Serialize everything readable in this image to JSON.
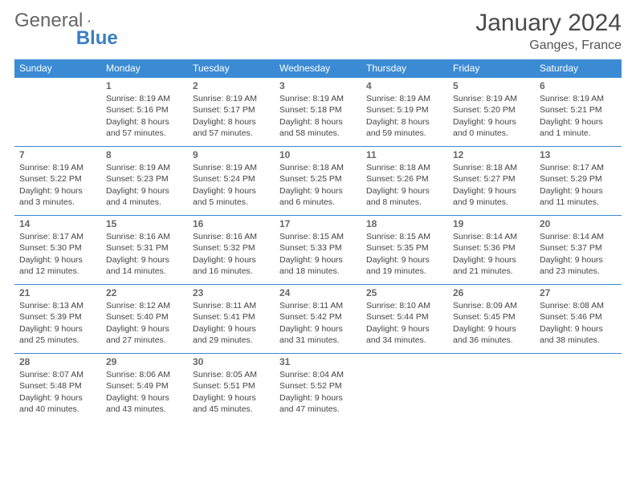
{
  "brand": {
    "part1": "General",
    "part2": "Blue"
  },
  "title": "January 2024",
  "location": "Ganges, France",
  "colors": {
    "header_bg": "#3b8bd4",
    "header_text": "#ffffff",
    "rule": "#3b8bd4",
    "body_text": "#444444",
    "title_text": "#4a4a4a"
  },
  "day_headers": [
    "Sunday",
    "Monday",
    "Tuesday",
    "Wednesday",
    "Thursday",
    "Friday",
    "Saturday"
  ],
  "weeks": [
    [
      null,
      {
        "n": "1",
        "sr": "Sunrise: 8:19 AM",
        "ss": "Sunset: 5:16 PM",
        "d1": "Daylight: 8 hours",
        "d2": "and 57 minutes."
      },
      {
        "n": "2",
        "sr": "Sunrise: 8:19 AM",
        "ss": "Sunset: 5:17 PM",
        "d1": "Daylight: 8 hours",
        "d2": "and 57 minutes."
      },
      {
        "n": "3",
        "sr": "Sunrise: 8:19 AM",
        "ss": "Sunset: 5:18 PM",
        "d1": "Daylight: 8 hours",
        "d2": "and 58 minutes."
      },
      {
        "n": "4",
        "sr": "Sunrise: 8:19 AM",
        "ss": "Sunset: 5:19 PM",
        "d1": "Daylight: 8 hours",
        "d2": "and 59 minutes."
      },
      {
        "n": "5",
        "sr": "Sunrise: 8:19 AM",
        "ss": "Sunset: 5:20 PM",
        "d1": "Daylight: 9 hours",
        "d2": "and 0 minutes."
      },
      {
        "n": "6",
        "sr": "Sunrise: 8:19 AM",
        "ss": "Sunset: 5:21 PM",
        "d1": "Daylight: 9 hours",
        "d2": "and 1 minute."
      }
    ],
    [
      {
        "n": "7",
        "sr": "Sunrise: 8:19 AM",
        "ss": "Sunset: 5:22 PM",
        "d1": "Daylight: 9 hours",
        "d2": "and 3 minutes."
      },
      {
        "n": "8",
        "sr": "Sunrise: 8:19 AM",
        "ss": "Sunset: 5:23 PM",
        "d1": "Daylight: 9 hours",
        "d2": "and 4 minutes."
      },
      {
        "n": "9",
        "sr": "Sunrise: 8:19 AM",
        "ss": "Sunset: 5:24 PM",
        "d1": "Daylight: 9 hours",
        "d2": "and 5 minutes."
      },
      {
        "n": "10",
        "sr": "Sunrise: 8:18 AM",
        "ss": "Sunset: 5:25 PM",
        "d1": "Daylight: 9 hours",
        "d2": "and 6 minutes."
      },
      {
        "n": "11",
        "sr": "Sunrise: 8:18 AM",
        "ss": "Sunset: 5:26 PM",
        "d1": "Daylight: 9 hours",
        "d2": "and 8 minutes."
      },
      {
        "n": "12",
        "sr": "Sunrise: 8:18 AM",
        "ss": "Sunset: 5:27 PM",
        "d1": "Daylight: 9 hours",
        "d2": "and 9 minutes."
      },
      {
        "n": "13",
        "sr": "Sunrise: 8:17 AM",
        "ss": "Sunset: 5:29 PM",
        "d1": "Daylight: 9 hours",
        "d2": "and 11 minutes."
      }
    ],
    [
      {
        "n": "14",
        "sr": "Sunrise: 8:17 AM",
        "ss": "Sunset: 5:30 PM",
        "d1": "Daylight: 9 hours",
        "d2": "and 12 minutes."
      },
      {
        "n": "15",
        "sr": "Sunrise: 8:16 AM",
        "ss": "Sunset: 5:31 PM",
        "d1": "Daylight: 9 hours",
        "d2": "and 14 minutes."
      },
      {
        "n": "16",
        "sr": "Sunrise: 8:16 AM",
        "ss": "Sunset: 5:32 PM",
        "d1": "Daylight: 9 hours",
        "d2": "and 16 minutes."
      },
      {
        "n": "17",
        "sr": "Sunrise: 8:15 AM",
        "ss": "Sunset: 5:33 PM",
        "d1": "Daylight: 9 hours",
        "d2": "and 18 minutes."
      },
      {
        "n": "18",
        "sr": "Sunrise: 8:15 AM",
        "ss": "Sunset: 5:35 PM",
        "d1": "Daylight: 9 hours",
        "d2": "and 19 minutes."
      },
      {
        "n": "19",
        "sr": "Sunrise: 8:14 AM",
        "ss": "Sunset: 5:36 PM",
        "d1": "Daylight: 9 hours",
        "d2": "and 21 minutes."
      },
      {
        "n": "20",
        "sr": "Sunrise: 8:14 AM",
        "ss": "Sunset: 5:37 PM",
        "d1": "Daylight: 9 hours",
        "d2": "and 23 minutes."
      }
    ],
    [
      {
        "n": "21",
        "sr": "Sunrise: 8:13 AM",
        "ss": "Sunset: 5:39 PM",
        "d1": "Daylight: 9 hours",
        "d2": "and 25 minutes."
      },
      {
        "n": "22",
        "sr": "Sunrise: 8:12 AM",
        "ss": "Sunset: 5:40 PM",
        "d1": "Daylight: 9 hours",
        "d2": "and 27 minutes."
      },
      {
        "n": "23",
        "sr": "Sunrise: 8:11 AM",
        "ss": "Sunset: 5:41 PM",
        "d1": "Daylight: 9 hours",
        "d2": "and 29 minutes."
      },
      {
        "n": "24",
        "sr": "Sunrise: 8:11 AM",
        "ss": "Sunset: 5:42 PM",
        "d1": "Daylight: 9 hours",
        "d2": "and 31 minutes."
      },
      {
        "n": "25",
        "sr": "Sunrise: 8:10 AM",
        "ss": "Sunset: 5:44 PM",
        "d1": "Daylight: 9 hours",
        "d2": "and 34 minutes."
      },
      {
        "n": "26",
        "sr": "Sunrise: 8:09 AM",
        "ss": "Sunset: 5:45 PM",
        "d1": "Daylight: 9 hours",
        "d2": "and 36 minutes."
      },
      {
        "n": "27",
        "sr": "Sunrise: 8:08 AM",
        "ss": "Sunset: 5:46 PM",
        "d1": "Daylight: 9 hours",
        "d2": "and 38 minutes."
      }
    ],
    [
      {
        "n": "28",
        "sr": "Sunrise: 8:07 AM",
        "ss": "Sunset: 5:48 PM",
        "d1": "Daylight: 9 hours",
        "d2": "and 40 minutes."
      },
      {
        "n": "29",
        "sr": "Sunrise: 8:06 AM",
        "ss": "Sunset: 5:49 PM",
        "d1": "Daylight: 9 hours",
        "d2": "and 43 minutes."
      },
      {
        "n": "30",
        "sr": "Sunrise: 8:05 AM",
        "ss": "Sunset: 5:51 PM",
        "d1": "Daylight: 9 hours",
        "d2": "and 45 minutes."
      },
      {
        "n": "31",
        "sr": "Sunrise: 8:04 AM",
        "ss": "Sunset: 5:52 PM",
        "d1": "Daylight: 9 hours",
        "d2": "and 47 minutes."
      },
      null,
      null,
      null
    ]
  ]
}
